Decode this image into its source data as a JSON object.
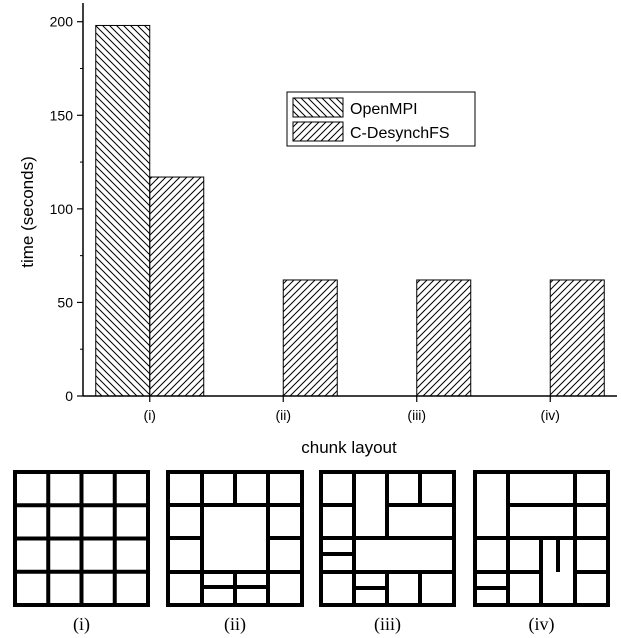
{
  "chart_data": {
    "type": "bar",
    "title": "",
    "xlabel": "chunk layout",
    "ylabel": "time (seconds)",
    "categories": [
      "(i)",
      "(ii)",
      "(iii)",
      "(iv)"
    ],
    "ylim": [
      0,
      210
    ],
    "yticks": [
      0,
      50,
      100,
      150,
      200
    ],
    "series": [
      {
        "name": "OpenMPI",
        "values": [
          198,
          0,
          0,
          0
        ],
        "pattern": "hatch-backslash"
      },
      {
        "name": "C-DesynchFS",
        "values": [
          117,
          62,
          62,
          62
        ],
        "pattern": "hatch-slash"
      }
    ],
    "legend_position": "top-right",
    "grid": false
  },
  "layout_diagrams": {
    "captions": [
      "(i)",
      "(ii)",
      "(iii)",
      "(iv)"
    ]
  }
}
